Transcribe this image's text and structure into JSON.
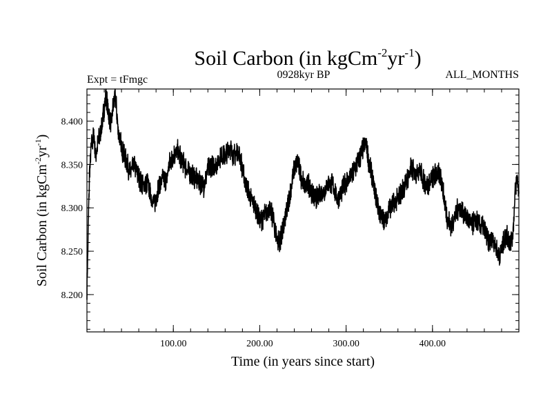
{
  "chart_data": {
    "type": "line",
    "title": {
      "main": "Soil Carbon (in kgCm",
      "sup1": "-2",
      "mid": "yr",
      "sup2": "-1",
      "end": ")"
    },
    "subtitle_left": "Expt = tFmgc",
    "subtitle_center": "0928kyr BP",
    "subtitle_right": "ALL_MONTHS",
    "xlabel": "Time (in years since start)",
    "ylabel": {
      "main": "Soil Carbon (in kgCm",
      "sup1": "-2",
      "mid": "yr",
      "sup2": "-1",
      "end": ")"
    },
    "xlim": [
      0,
      500
    ],
    "ylim": [
      8.157,
      8.437
    ],
    "x_ticks": [
      100,
      200,
      300,
      400
    ],
    "x_tick_labels": [
      "100.00",
      "200.00",
      "300.00",
      "400.00"
    ],
    "x_minor_step": 20,
    "y_ticks": [
      8.2,
      8.25,
      8.3,
      8.35,
      8.4
    ],
    "y_tick_labels": [
      "8.200",
      "8.250",
      "8.300",
      "8.350",
      "8.400"
    ],
    "y_minor_step": 0.01,
    "line_color": "#000000",
    "series": [
      {
        "name": "Soil Carbon",
        "anchors": [
          [
            0,
            8.205
          ],
          [
            1,
            8.25
          ],
          [
            2,
            8.3
          ],
          [
            3,
            8.34
          ],
          [
            5,
            8.37
          ],
          [
            8,
            8.385
          ],
          [
            10,
            8.36
          ],
          [
            12,
            8.37
          ],
          [
            15,
            8.385
          ],
          [
            18,
            8.4
          ],
          [
            20,
            8.415
          ],
          [
            22,
            8.43
          ],
          [
            25,
            8.41
          ],
          [
            28,
            8.395
          ],
          [
            30,
            8.415
          ],
          [
            33,
            8.43
          ],
          [
            36,
            8.39
          ],
          [
            40,
            8.37
          ],
          [
            45,
            8.355
          ],
          [
            50,
            8.34
          ],
          [
            55,
            8.35
          ],
          [
            60,
            8.335
          ],
          [
            65,
            8.325
          ],
          [
            70,
            8.33
          ],
          [
            75,
            8.31
          ],
          [
            78,
            8.305
          ],
          [
            82,
            8.32
          ],
          [
            88,
            8.335
          ],
          [
            92,
            8.33
          ],
          [
            95,
            8.35
          ],
          [
            100,
            8.36
          ],
          [
            105,
            8.365
          ],
          [
            110,
            8.355
          ],
          [
            115,
            8.345
          ],
          [
            120,
            8.34
          ],
          [
            125,
            8.335
          ],
          [
            130,
            8.33
          ],
          [
            135,
            8.325
          ],
          [
            140,
            8.345
          ],
          [
            145,
            8.35
          ],
          [
            150,
            8.35
          ],
          [
            155,
            8.36
          ],
          [
            160,
            8.36
          ],
          [
            165,
            8.37
          ],
          [
            170,
            8.36
          ],
          [
            175,
            8.365
          ],
          [
            178,
            8.355
          ],
          [
            182,
            8.335
          ],
          [
            186,
            8.32
          ],
          [
            190,
            8.31
          ],
          [
            195,
            8.3
          ],
          [
            200,
            8.285
          ],
          [
            205,
            8.29
          ],
          [
            210,
            8.3
          ],
          [
            215,
            8.29
          ],
          [
            220,
            8.265
          ],
          [
            223,
            8.26
          ],
          [
            227,
            8.275
          ],
          [
            232,
            8.3
          ],
          [
            236,
            8.32
          ],
          [
            240,
            8.345
          ],
          [
            244,
            8.355
          ],
          [
            248,
            8.335
          ],
          [
            252,
            8.325
          ],
          [
            256,
            8.33
          ],
          [
            260,
            8.315
          ],
          [
            265,
            8.31
          ],
          [
            270,
            8.315
          ],
          [
            275,
            8.32
          ],
          [
            280,
            8.33
          ],
          [
            285,
            8.325
          ],
          [
            290,
            8.31
          ],
          [
            295,
            8.32
          ],
          [
            300,
            8.33
          ],
          [
            305,
            8.335
          ],
          [
            310,
            8.345
          ],
          [
            315,
            8.355
          ],
          [
            320,
            8.37
          ],
          [
            323,
            8.375
          ],
          [
            326,
            8.355
          ],
          [
            330,
            8.335
          ],
          [
            335,
            8.31
          ],
          [
            340,
            8.29
          ],
          [
            345,
            8.285
          ],
          [
            350,
            8.3
          ],
          [
            355,
            8.305
          ],
          [
            360,
            8.31
          ],
          [
            365,
            8.32
          ],
          [
            370,
            8.33
          ],
          [
            375,
            8.345
          ],
          [
            380,
            8.34
          ],
          [
            385,
            8.345
          ],
          [
            390,
            8.33
          ],
          [
            395,
            8.325
          ],
          [
            400,
            8.335
          ],
          [
            405,
            8.34
          ],
          [
            410,
            8.335
          ],
          [
            415,
            8.3
          ],
          [
            418,
            8.285
          ],
          [
            422,
            8.28
          ],
          [
            426,
            8.29
          ],
          [
            430,
            8.3
          ],
          [
            435,
            8.295
          ],
          [
            440,
            8.29
          ],
          [
            445,
            8.28
          ],
          [
            450,
            8.285
          ],
          [
            455,
            8.28
          ],
          [
            460,
            8.275
          ],
          [
            465,
            8.26
          ],
          [
            470,
            8.265
          ],
          [
            475,
            8.25
          ],
          [
            478,
            8.245
          ],
          [
            482,
            8.26
          ],
          [
            486,
            8.27
          ],
          [
            490,
            8.26
          ],
          [
            493,
            8.27
          ],
          [
            496,
            8.32
          ],
          [
            498,
            8.335
          ],
          [
            500,
            8.315
          ]
        ]
      }
    ]
  }
}
